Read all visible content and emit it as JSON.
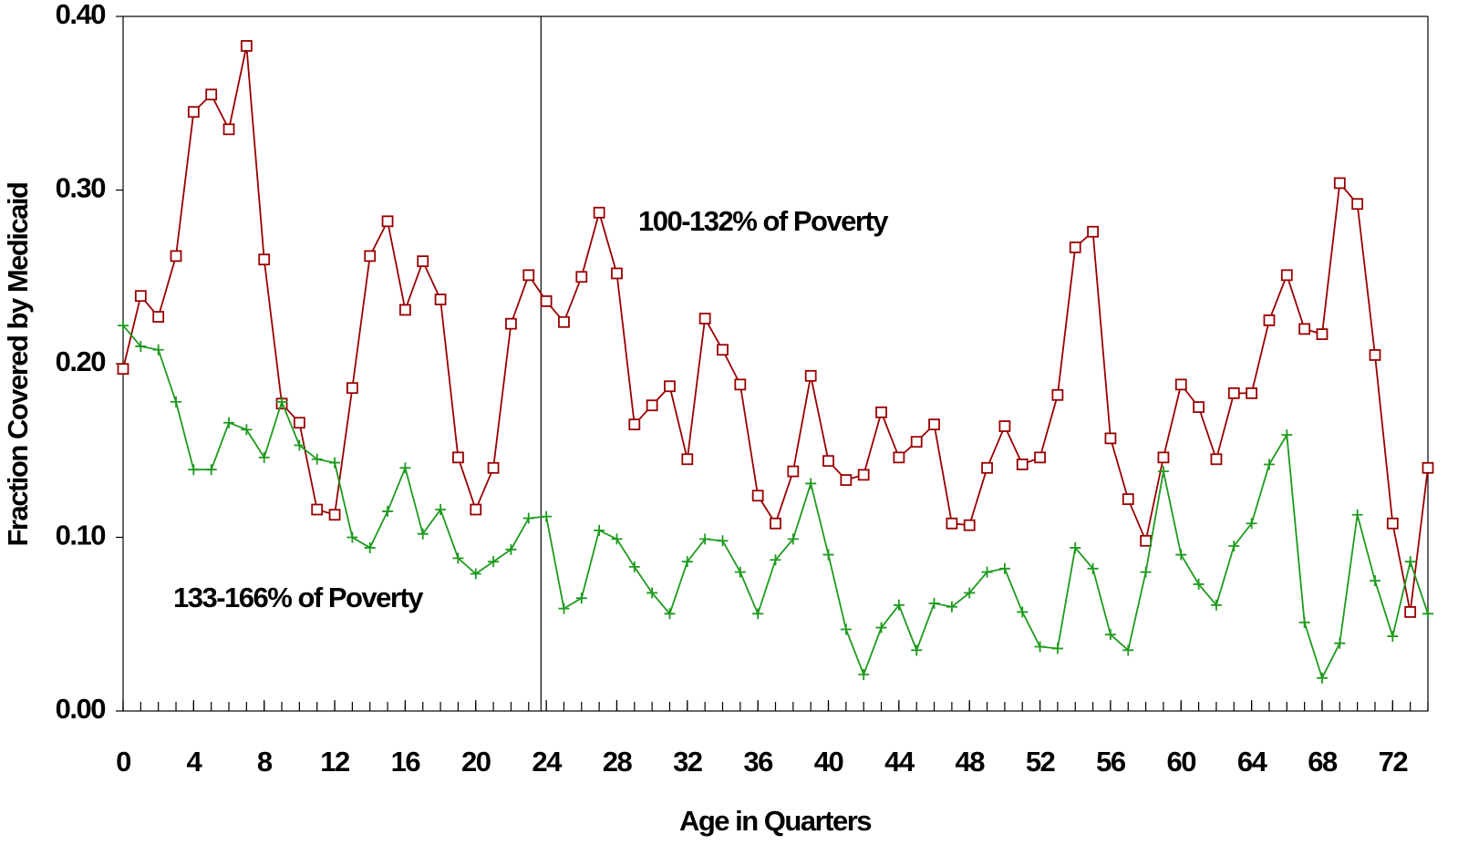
{
  "chart_data": {
    "type": "line",
    "x_label": "Age in Quarters",
    "y_label": "Fraction Covered by Medicaid",
    "x": [
      0,
      1,
      2,
      3,
      4,
      5,
      6,
      7,
      8,
      9,
      10,
      11,
      12,
      13,
      14,
      15,
      16,
      17,
      18,
      19,
      20,
      21,
      22,
      23,
      24,
      25,
      26,
      27,
      28,
      29,
      30,
      31,
      32,
      33,
      34,
      35,
      36,
      37,
      38,
      39,
      40,
      41,
      42,
      43,
      44,
      45,
      46,
      47,
      48,
      49,
      50,
      51,
      52,
      53,
      54,
      55,
      56,
      57,
      58,
      59,
      60,
      61,
      62,
      63,
      64,
      65,
      66,
      67,
      68,
      69,
      70,
      71,
      72,
      73,
      74
    ],
    "series": [
      {
        "name": "100-132% of Poverty",
        "color": "#990000",
        "marker": "square",
        "values": [
          0.197,
          0.239,
          0.227,
          0.262,
          0.345,
          0.355,
          0.335,
          0.383,
          0.26,
          0.177,
          0.166,
          0.116,
          0.113,
          0.186,
          0.262,
          0.282,
          0.231,
          0.259,
          0.237,
          0.146,
          0.116,
          0.14,
          0.223,
          0.251,
          0.236,
          0.224,
          0.25,
          0.287,
          0.252,
          0.165,
          0.176,
          0.187,
          0.145,
          0.226,
          0.208,
          0.188,
          0.124,
          0.108,
          0.138,
          0.193,
          0.144,
          0.133,
          0.136,
          0.172,
          0.146,
          0.155,
          0.165,
          0.108,
          0.107,
          0.14,
          0.164,
          0.142,
          0.146,
          0.182,
          0.267,
          0.276,
          0.157,
          0.122,
          0.098,
          0.146,
          0.188,
          0.175,
          0.145,
          0.183,
          0.183,
          0.225,
          0.251,
          0.22,
          0.217,
          0.304,
          0.292,
          0.205,
          0.108,
          0.057,
          0.14
        ]
      },
      {
        "name": "133-166% of Poverty",
        "color": "#1e9a1e",
        "marker": "plus",
        "values": [
          0.222,
          0.21,
          0.208,
          0.178,
          0.139,
          0.139,
          0.166,
          0.162,
          0.146,
          0.178,
          0.153,
          0.145,
          0.143,
          0.1,
          0.094,
          0.115,
          0.14,
          0.102,
          0.116,
          0.088,
          0.079,
          0.086,
          0.093,
          0.111,
          0.112,
          0.059,
          0.065,
          0.104,
          0.099,
          0.083,
          0.068,
          0.056,
          0.086,
          0.099,
          0.098,
          0.08,
          0.056,
          0.087,
          0.099,
          0.131,
          0.09,
          0.047,
          0.021,
          0.048,
          0.061,
          0.035,
          0.062,
          0.06,
          0.068,
          0.08,
          0.082,
          0.057,
          0.037,
          0.036,
          0.094,
          0.082,
          0.044,
          0.035,
          0.08,
          0.138,
          0.09,
          0.073,
          0.061,
          0.095,
          0.108,
          0.142,
          0.159,
          0.051,
          0.019,
          0.039,
          0.113,
          0.075,
          0.043,
          0.086,
          0.056
        ]
      }
    ],
    "reference_line_x": 23.7,
    "xlim": [
      0,
      74
    ],
    "xticks": [
      0,
      4,
      8,
      12,
      16,
      20,
      24,
      28,
      32,
      36,
      40,
      44,
      48,
      52,
      56,
      60,
      64,
      68,
      72
    ],
    "ylim": [
      0,
      0.4
    ],
    "yticks": [
      {
        "value": 0,
        "label": "0.00"
      },
      {
        "value": 0.1,
        "label": "0.10"
      },
      {
        "value": 0.2,
        "label": "0.20"
      },
      {
        "value": 0.3,
        "label": "0.30"
      },
      {
        "value": 0.4,
        "label": "0.40"
      }
    ],
    "grid": false
  }
}
